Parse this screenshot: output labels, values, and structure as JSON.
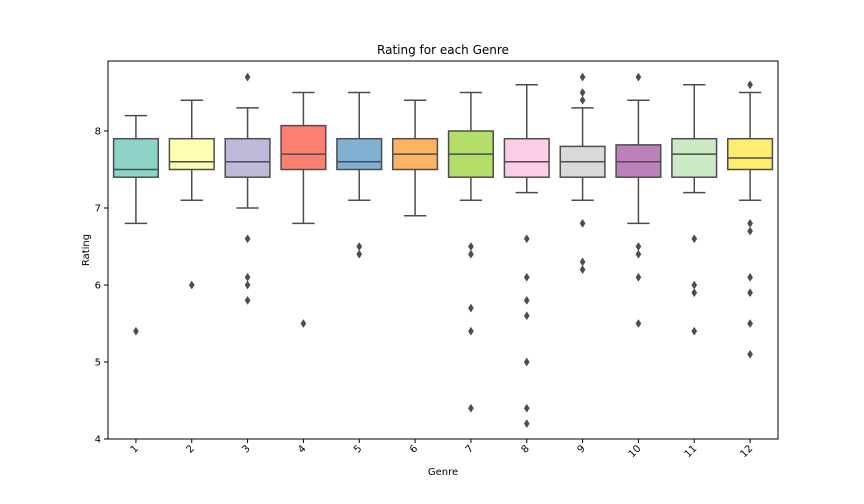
{
  "chart_data": {
    "type": "box",
    "title": "Rating for each Genre",
    "xlabel": "Genre",
    "ylabel": "Rating",
    "ylim": [
      4.0,
      8.9
    ],
    "yticks": [
      4,
      5,
      6,
      7,
      8
    ],
    "categories": [
      "1",
      "2",
      "3",
      "4",
      "5",
      "6",
      "7",
      "8",
      "9",
      "10",
      "11",
      "12"
    ],
    "colors": [
      "#8dd3c7",
      "#ffffb3",
      "#bebada",
      "#fb8072",
      "#80b1d3",
      "#fdb462",
      "#b3de69",
      "#fccde5",
      "#d9d9d9",
      "#bc80bd",
      "#ccebc5",
      "#ffed6f"
    ],
    "boxes": [
      {
        "genre": "1",
        "whisker_low": 6.8,
        "q1": 7.4,
        "median": 7.5,
        "q3": 7.9,
        "whisker_high": 8.2,
        "outliers": [
          5.4
        ]
      },
      {
        "genre": "2",
        "whisker_low": 7.1,
        "q1": 7.5,
        "median": 7.6,
        "q3": 7.9,
        "whisker_high": 8.4,
        "outliers": [
          6.0
        ]
      },
      {
        "genre": "3",
        "whisker_low": 7.0,
        "q1": 7.4,
        "median": 7.6,
        "q3": 7.9,
        "whisker_high": 8.3,
        "outliers": [
          8.7,
          6.6,
          6.1,
          6.0,
          5.8
        ]
      },
      {
        "genre": "4",
        "whisker_low": 6.8,
        "q1": 7.5,
        "median": 7.7,
        "q3": 8.07,
        "whisker_high": 8.5,
        "outliers": [
          5.5
        ]
      },
      {
        "genre": "5",
        "whisker_low": 7.1,
        "q1": 7.5,
        "median": 7.6,
        "q3": 7.9,
        "whisker_high": 8.5,
        "outliers": [
          6.5,
          6.4
        ]
      },
      {
        "genre": "6",
        "whisker_low": 6.9,
        "q1": 7.5,
        "median": 7.7,
        "q3": 7.9,
        "whisker_high": 8.4,
        "outliers": []
      },
      {
        "genre": "7",
        "whisker_low": 7.1,
        "q1": 7.4,
        "median": 7.7,
        "q3": 8.0,
        "whisker_high": 8.5,
        "outliers": [
          6.5,
          6.4,
          5.7,
          5.4,
          4.4
        ]
      },
      {
        "genre": "8",
        "whisker_low": 7.2,
        "q1": 7.4,
        "median": 7.6,
        "q3": 7.9,
        "whisker_high": 8.6,
        "outliers": [
          6.6,
          6.1,
          5.8,
          5.6,
          5.0,
          4.4,
          4.2
        ]
      },
      {
        "genre": "9",
        "whisker_low": 7.1,
        "q1": 7.4,
        "median": 7.6,
        "q3": 7.8,
        "whisker_high": 8.3,
        "outliers": [
          8.7,
          8.5,
          8.4,
          6.8,
          6.3,
          6.2
        ]
      },
      {
        "genre": "10",
        "whisker_low": 6.8,
        "q1": 7.4,
        "median": 7.6,
        "q3": 7.82,
        "whisker_high": 8.4,
        "outliers": [
          8.7,
          6.5,
          6.4,
          6.1,
          5.5
        ]
      },
      {
        "genre": "11",
        "whisker_low": 7.2,
        "q1": 7.4,
        "median": 7.7,
        "q3": 7.9,
        "whisker_high": 8.6,
        "outliers": [
          6.6,
          6.0,
          5.9,
          5.4
        ]
      },
      {
        "genre": "12",
        "whisker_low": 7.1,
        "q1": 7.5,
        "median": 7.65,
        "q3": 7.9,
        "whisker_high": 8.5,
        "outliers": [
          8.6,
          6.8,
          6.7,
          6.1,
          5.9,
          5.5,
          5.1
        ]
      }
    ]
  }
}
